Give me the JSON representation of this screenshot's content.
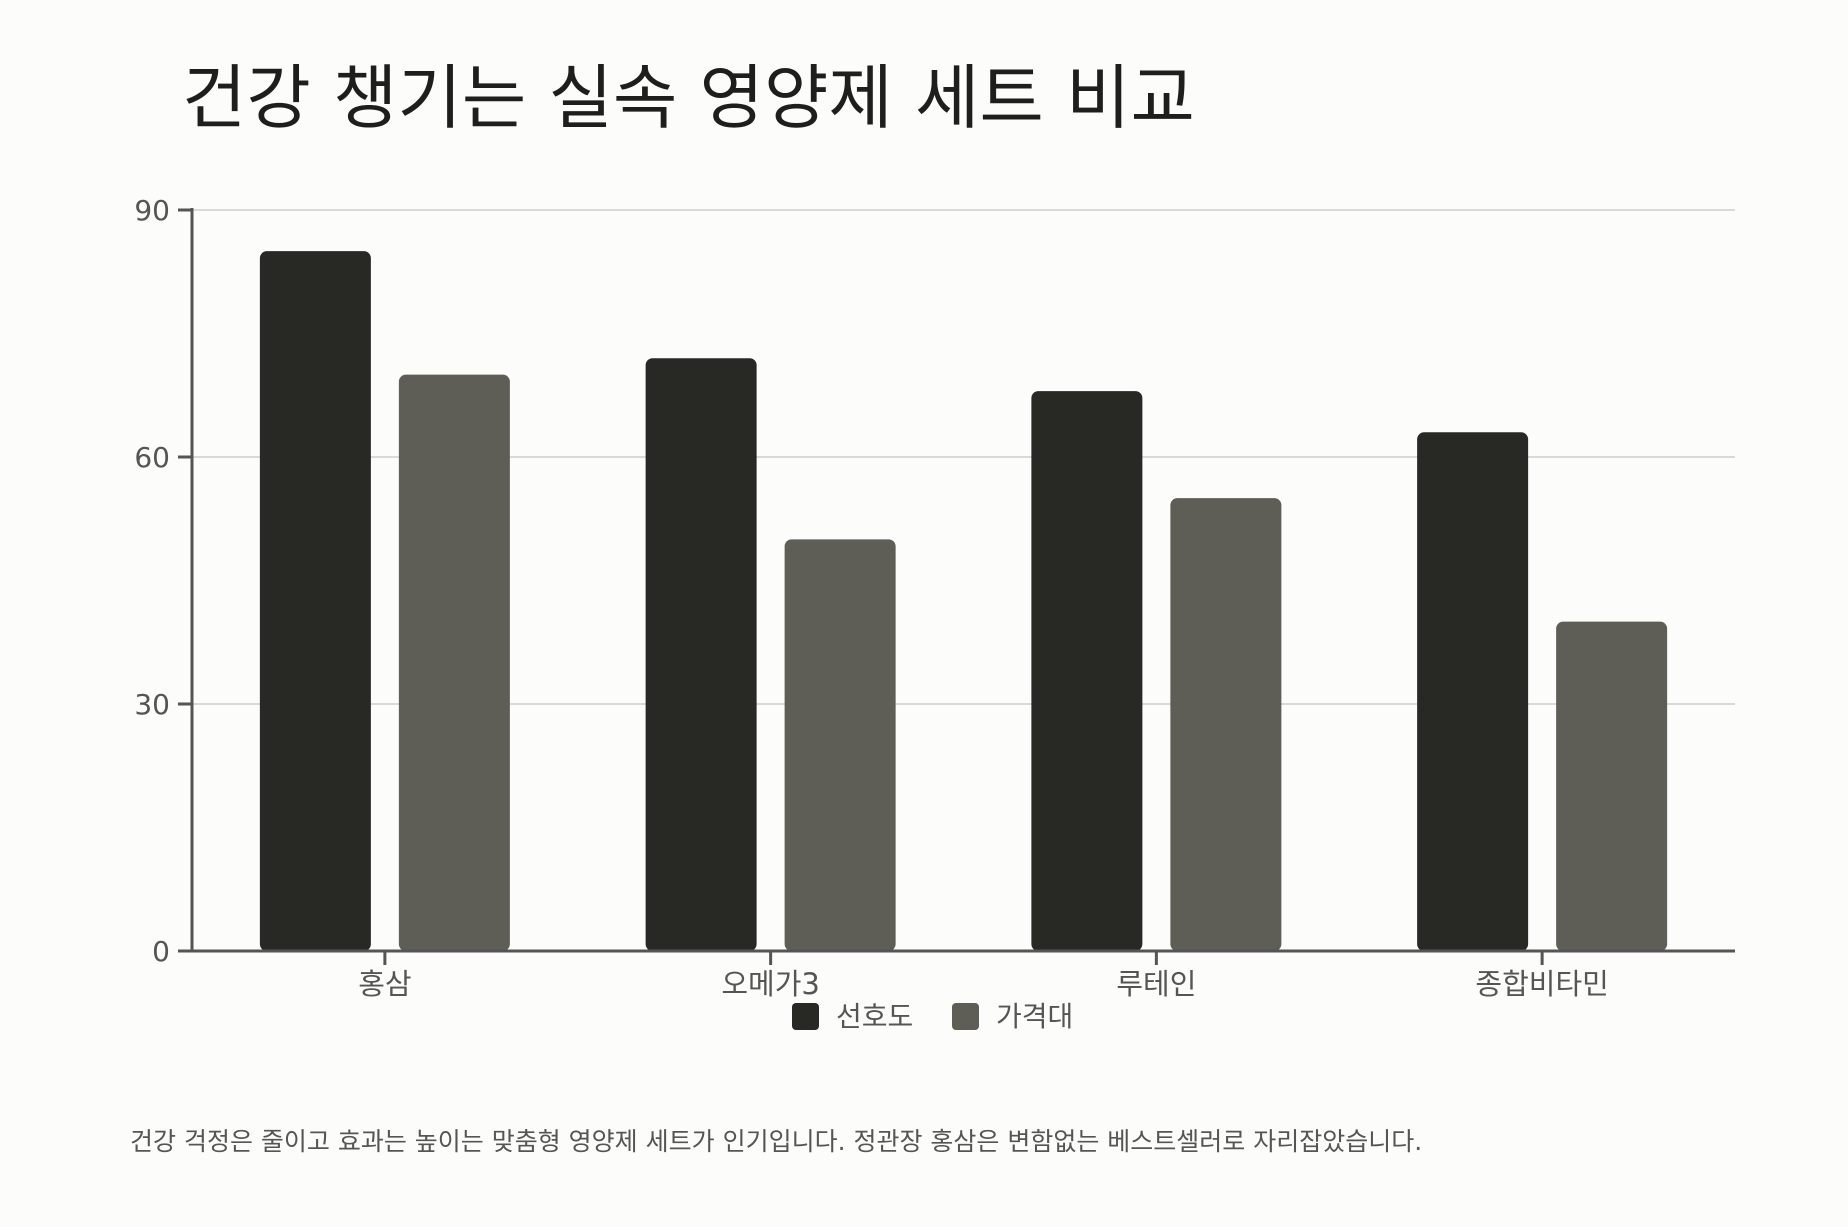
{
  "chart_data": {
    "type": "bar",
    "title": "건강 챙기는 실속 영양제 세트 비교",
    "categories": [
      "홍삼",
      "오메가3",
      "루테인",
      "종합비타민"
    ],
    "series": [
      {
        "name": "선호도",
        "values": [
          85,
          72,
          68,
          63
        ],
        "color": "#282825"
      },
      {
        "name": "가격대",
        "values": [
          70,
          50,
          55,
          40
        ],
        "color": "#5e5d56"
      }
    ],
    "ylim": [
      0,
      90
    ],
    "yticks": [
      0,
      30,
      60,
      90
    ],
    "xlabel": "",
    "ylabel": "",
    "grid": true,
    "legend": "bottom-center"
  },
  "caption": "건강 걱정은 줄이고 효과는 높이는 맞춤형 영양제 세트가 인기입니다. 정관장 홍삼은 변함없는 베스트셀러로 자리잡았습니다."
}
